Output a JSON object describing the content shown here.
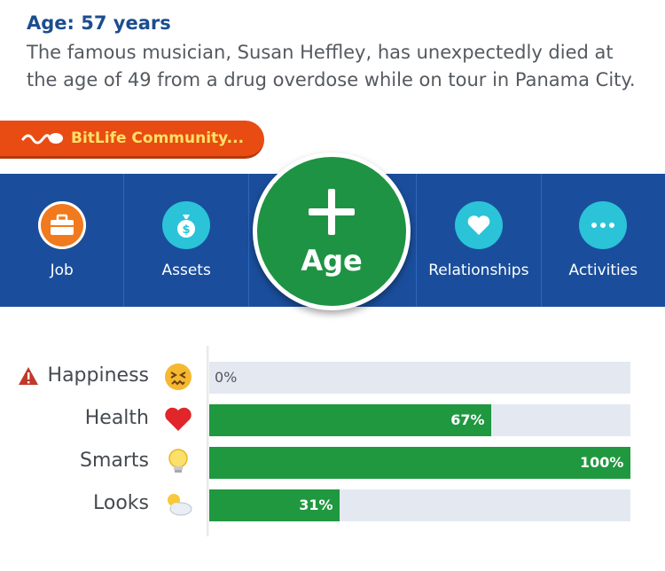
{
  "log": {
    "age_heading": "Age: 57 years",
    "message": "The famous musician, Susan Heffley, has unexpectedly died at the age of 49 from a drug overdose while on tour in Panama City."
  },
  "banner": {
    "label": "BitLife Community...",
    "color": "#e84c12",
    "text_color": "#ffe066"
  },
  "nav": {
    "job": {
      "label": "Job",
      "icon": "briefcase-icon"
    },
    "assets": {
      "label": "Assets",
      "icon": "money-bag-icon"
    },
    "age": {
      "label": "Age",
      "icon": "plus-icon"
    },
    "relationships": {
      "label": "Relationships",
      "icon": "heart-icon"
    },
    "activities": {
      "label": "Activities",
      "icon": "ellipsis-icon"
    },
    "bar_color": "#1a4e9c",
    "age_color": "#1e9344"
  },
  "stats": [
    {
      "label": "Happiness",
      "value": 0,
      "display": "0%",
      "icon": "frustrated-face-icon",
      "warning": true
    },
    {
      "label": "Health",
      "value": 67,
      "display": "67%",
      "icon": "red-heart-icon",
      "warning": false
    },
    {
      "label": "Smarts",
      "value": 100,
      "display": "100%",
      "icon": "lightbulb-icon",
      "warning": false
    },
    {
      "label": "Looks",
      "value": 31,
      "display": "31%",
      "icon": "sun-behind-cloud-icon",
      "warning": false
    }
  ]
}
